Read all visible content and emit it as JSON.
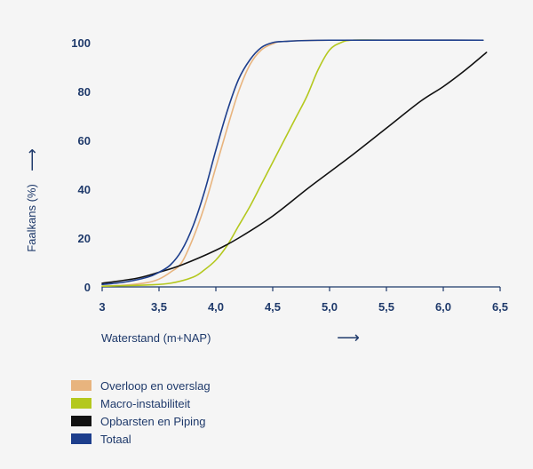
{
  "chart_data": {
    "type": "line",
    "xlabel": "Waterstand (m+NAP)",
    "ylabel": "Faalkans (%)",
    "xlim": [
      3,
      6.5
    ],
    "ylim": [
      0,
      100
    ],
    "x_ticks": [
      "3",
      "3,5",
      "4,0",
      "4,5",
      "5,0",
      "5,5",
      "6,0",
      "6,5"
    ],
    "x_tick_values": [
      3,
      3.5,
      4,
      4.5,
      5,
      5.5,
      6,
      6.5
    ],
    "y_ticks": [
      "0",
      "20",
      "40",
      "60",
      "80",
      "100"
    ],
    "y_tick_values": [
      0,
      20,
      40,
      60,
      80,
      100
    ],
    "grid": false,
    "legend_position": "bottom-left",
    "arrow_glyph": "⟶",
    "series": [
      {
        "name": "Overloop en overslag",
        "color": "#e8b47e",
        "points": [
          [
            3.0,
            0.3
          ],
          [
            3.2,
            0.7
          ],
          [
            3.4,
            1.8
          ],
          [
            3.5,
            3.2
          ],
          [
            3.6,
            6
          ],
          [
            3.7,
            10
          ],
          [
            3.8,
            20
          ],
          [
            3.9,
            33
          ],
          [
            4.0,
            49
          ],
          [
            4.1,
            65
          ],
          [
            4.2,
            80
          ],
          [
            4.3,
            91
          ],
          [
            4.4,
            97
          ],
          [
            4.5,
            99.5
          ],
          [
            4.6,
            100.5
          ],
          [
            5.0,
            101
          ],
          [
            6.35,
            101
          ]
        ]
      },
      {
        "name": "Macro-instabiliteit",
        "color": "#b4c81e",
        "points": [
          [
            3.0,
            0.3
          ],
          [
            3.4,
            0.8
          ],
          [
            3.6,
            1.5
          ],
          [
            3.8,
            4
          ],
          [
            3.9,
            7
          ],
          [
            4.0,
            11
          ],
          [
            4.1,
            17
          ],
          [
            4.2,
            25
          ],
          [
            4.3,
            33
          ],
          [
            4.4,
            42
          ],
          [
            4.5,
            51
          ],
          [
            4.6,
            60
          ],
          [
            4.7,
            69
          ],
          [
            4.8,
            78
          ],
          [
            4.9,
            89
          ],
          [
            5.0,
            97
          ],
          [
            5.1,
            100
          ],
          [
            5.2,
            101
          ],
          [
            5.5,
            101
          ],
          [
            6.35,
            101
          ]
        ]
      },
      {
        "name": "Opbarsten en Piping",
        "color": "#111111",
        "points": [
          [
            3.0,
            1.5
          ],
          [
            3.3,
            3.5
          ],
          [
            3.5,
            6
          ],
          [
            3.7,
            9
          ],
          [
            4.0,
            15
          ],
          [
            4.2,
            20
          ],
          [
            4.5,
            29
          ],
          [
            4.8,
            40
          ],
          [
            5.0,
            47
          ],
          [
            5.2,
            54
          ],
          [
            5.5,
            65
          ],
          [
            5.8,
            76
          ],
          [
            6.0,
            82
          ],
          [
            6.2,
            89
          ],
          [
            6.38,
            96
          ]
        ]
      },
      {
        "name": "Totaal",
        "color": "#1d3e8c",
        "points": [
          [
            3.0,
            1
          ],
          [
            3.2,
            2
          ],
          [
            3.4,
            4
          ],
          [
            3.5,
            6
          ],
          [
            3.6,
            9
          ],
          [
            3.7,
            15
          ],
          [
            3.8,
            25
          ],
          [
            3.9,
            39
          ],
          [
            4.0,
            56
          ],
          [
            4.1,
            72
          ],
          [
            4.2,
            85
          ],
          [
            4.3,
            93
          ],
          [
            4.4,
            98
          ],
          [
            4.5,
            100
          ],
          [
            4.6,
            100.5
          ],
          [
            5.0,
            101
          ],
          [
            6.35,
            101
          ]
        ]
      }
    ]
  }
}
